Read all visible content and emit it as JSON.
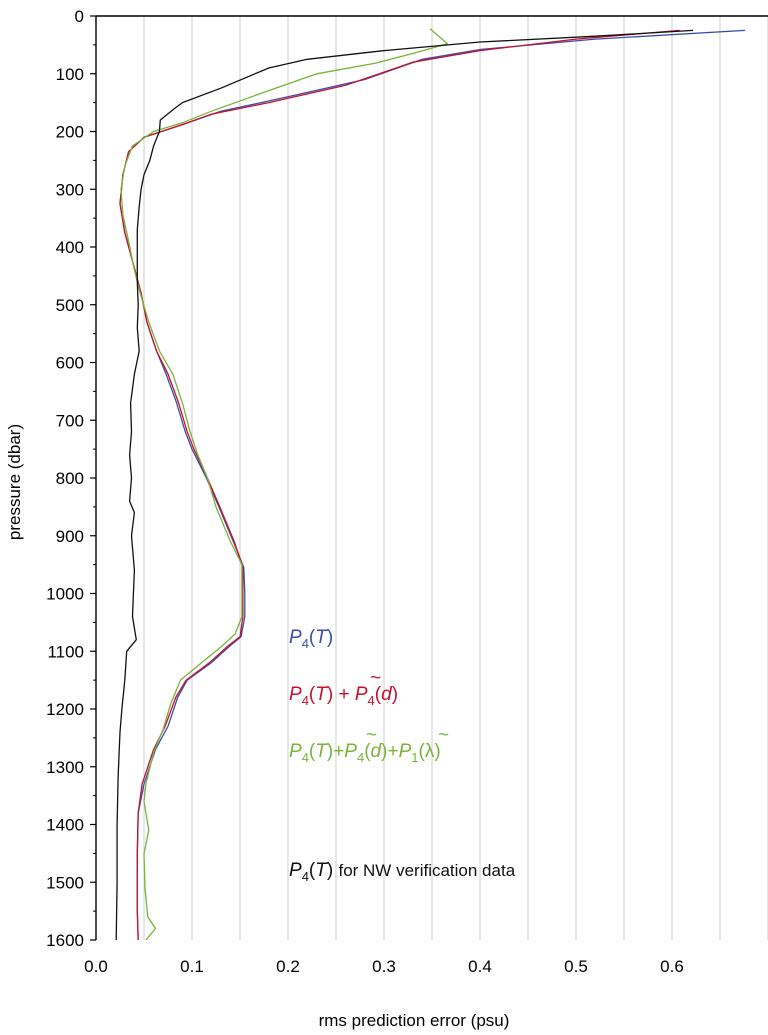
{
  "chart_data": {
    "type": "line",
    "xlabel": "rms prediction error (psu)",
    "ylabel": "pressure (dbar)",
    "xlim": [
      0.0,
      0.7
    ],
    "ylim": [
      1600,
      0
    ],
    "y_inverted": true,
    "grid": "vertical",
    "legend_placement": "center-right",
    "x_ticks": [
      "0.0",
      "0.1",
      "0.2",
      "0.3",
      "0.4",
      "0.5",
      "0.6"
    ],
    "y_ticks": [
      "0",
      "100",
      "200",
      "300",
      "400",
      "500",
      "600",
      "700",
      "800",
      "900",
      "1000",
      "1100",
      "1200",
      "1300",
      "1400",
      "1500",
      "1600"
    ],
    "series": [
      {
        "color": "#3a4ea8",
        "points": [
          [
            0.676,
            25
          ],
          [
            0.52,
            40
          ],
          [
            0.4,
            58
          ],
          [
            0.34,
            75
          ],
          [
            0.28,
            110
          ],
          [
            0.2,
            140
          ],
          [
            0.13,
            165
          ],
          [
            0.09,
            188
          ],
          [
            0.05,
            210
          ],
          [
            0.034,
            235
          ],
          [
            0.028,
            275
          ],
          [
            0.025,
            325
          ],
          [
            0.03,
            375
          ],
          [
            0.039,
            430
          ],
          [
            0.047,
            480
          ],
          [
            0.053,
            530
          ],
          [
            0.063,
            580
          ],
          [
            0.073,
            620
          ],
          [
            0.084,
            670
          ],
          [
            0.093,
            720
          ],
          [
            0.1,
            750
          ],
          [
            0.115,
            800
          ],
          [
            0.128,
            850
          ],
          [
            0.143,
            910
          ],
          [
            0.154,
            955
          ],
          [
            0.155,
            1000
          ],
          [
            0.155,
            1040
          ],
          [
            0.151,
            1075
          ],
          [
            0.14,
            1090
          ],
          [
            0.12,
            1120
          ],
          [
            0.095,
            1150
          ],
          [
            0.085,
            1180
          ],
          [
            0.075,
            1230
          ],
          [
            0.062,
            1270
          ],
          [
            0.05,
            1330
          ],
          [
            0.044,
            1380
          ],
          [
            0.043,
            1450
          ],
          [
            0.043,
            1500
          ],
          [
            0.043,
            1550
          ],
          [
            0.044,
            1600
          ]
        ]
      },
      {
        "color": "#c8102e",
        "points": [
          [
            0.608,
            25
          ],
          [
            0.5,
            40
          ],
          [
            0.4,
            60
          ],
          [
            0.33,
            80
          ],
          [
            0.26,
            120
          ],
          [
            0.18,
            150
          ],
          [
            0.12,
            170
          ],
          [
            0.09,
            188
          ],
          [
            0.05,
            210
          ],
          [
            0.034,
            235
          ],
          [
            0.028,
            275
          ],
          [
            0.025,
            325
          ],
          [
            0.03,
            375
          ],
          [
            0.039,
            430
          ],
          [
            0.047,
            480
          ],
          [
            0.053,
            530
          ],
          [
            0.063,
            580
          ],
          [
            0.075,
            620
          ],
          [
            0.086,
            670
          ],
          [
            0.095,
            720
          ],
          [
            0.102,
            750
          ],
          [
            0.116,
            800
          ],
          [
            0.129,
            850
          ],
          [
            0.144,
            910
          ],
          [
            0.153,
            955
          ],
          [
            0.153,
            1000
          ],
          [
            0.153,
            1040
          ],
          [
            0.15,
            1075
          ],
          [
            0.138,
            1090
          ],
          [
            0.118,
            1120
          ],
          [
            0.094,
            1150
          ],
          [
            0.083,
            1180
          ],
          [
            0.072,
            1230
          ],
          [
            0.06,
            1270
          ],
          [
            0.048,
            1330
          ],
          [
            0.044,
            1380
          ],
          [
            0.043,
            1450
          ],
          [
            0.043,
            1500
          ],
          [
            0.043,
            1550
          ],
          [
            0.044,
            1600
          ]
        ]
      },
      {
        "color": "#7ab33a",
        "points": [
          [
            0.348,
            22
          ],
          [
            0.366,
            48
          ],
          [
            0.33,
            65
          ],
          [
            0.29,
            82
          ],
          [
            0.23,
            100
          ],
          [
            0.17,
            135
          ],
          [
            0.12,
            165
          ],
          [
            0.09,
            185
          ],
          [
            0.06,
            200
          ],
          [
            0.038,
            225
          ],
          [
            0.03,
            260
          ],
          [
            0.026,
            300
          ],
          [
            0.028,
            345
          ],
          [
            0.034,
            390
          ],
          [
            0.04,
            440
          ],
          [
            0.046,
            480
          ],
          [
            0.055,
            530
          ],
          [
            0.066,
            580
          ],
          [
            0.08,
            620
          ],
          [
            0.09,
            670
          ],
          [
            0.098,
            720
          ],
          [
            0.106,
            760
          ],
          [
            0.116,
            800
          ],
          [
            0.125,
            850
          ],
          [
            0.14,
            910
          ],
          [
            0.152,
            950
          ],
          [
            0.152,
            1000
          ],
          [
            0.152,
            1040
          ],
          [
            0.145,
            1070
          ],
          [
            0.132,
            1090
          ],
          [
            0.11,
            1120
          ],
          [
            0.088,
            1150
          ],
          [
            0.078,
            1190
          ],
          [
            0.07,
            1235
          ],
          [
            0.06,
            1275
          ],
          [
            0.052,
            1330
          ],
          [
            0.05,
            1360
          ],
          [
            0.055,
            1410
          ],
          [
            0.05,
            1450
          ],
          [
            0.051,
            1510
          ],
          [
            0.054,
            1560
          ],
          [
            0.062,
            1580
          ],
          [
            0.052,
            1600
          ]
        ]
      },
      {
        "color": "#111111",
        "points": [
          [
            0.622,
            25
          ],
          [
            0.52,
            35
          ],
          [
            0.4,
            45
          ],
          [
            0.3,
            60
          ],
          [
            0.22,
            75
          ],
          [
            0.18,
            90
          ],
          [
            0.13,
            125
          ],
          [
            0.09,
            150
          ],
          [
            0.082,
            160
          ],
          [
            0.067,
            180
          ],
          [
            0.066,
            200
          ],
          [
            0.06,
            225
          ],
          [
            0.056,
            250
          ],
          [
            0.05,
            275
          ],
          [
            0.047,
            300
          ],
          [
            0.045,
            330
          ],
          [
            0.043,
            370
          ],
          [
            0.043,
            420
          ],
          [
            0.043,
            460
          ],
          [
            0.044,
            500
          ],
          [
            0.043,
            540
          ],
          [
            0.045,
            580
          ],
          [
            0.04,
            620
          ],
          [
            0.036,
            670
          ],
          [
            0.037,
            720
          ],
          [
            0.035,
            760
          ],
          [
            0.037,
            800
          ],
          [
            0.035,
            840
          ],
          [
            0.04,
            860
          ],
          [
            0.037,
            900
          ],
          [
            0.04,
            960
          ],
          [
            0.039,
            1000
          ],
          [
            0.038,
            1040
          ],
          [
            0.042,
            1080
          ],
          [
            0.032,
            1100
          ],
          [
            0.03,
            1150
          ],
          [
            0.027,
            1200
          ],
          [
            0.025,
            1240
          ],
          [
            0.024,
            1280
          ],
          [
            0.023,
            1320
          ],
          [
            0.022,
            1400
          ],
          [
            0.022,
            1450
          ],
          [
            0.022,
            1500
          ],
          [
            0.021,
            1600
          ]
        ]
      }
    ],
    "annotations": {
      "blue": {
        "color": "#3a4ea8",
        "base": "P",
        "sub": "4",
        "arg": "T"
      },
      "red": {
        "color": "#c8102e",
        "base1": "P",
        "sub1": "4",
        "arg1": "T",
        "plus": "+",
        "tilde": "~",
        "base2": "P",
        "sub2": "4",
        "arg2": "d"
      },
      "green": {
        "color": "#7ab33a",
        "base1": "P",
        "sub1": "4",
        "arg1": "T",
        "plus": "+",
        "tilde": "~",
        "base2": "P",
        "sub2": "4",
        "arg2": "d",
        "base3": "P",
        "sub3": "1",
        "arg3": "λ"
      },
      "black": {
        "color": "#111111",
        "base": "P",
        "sub": "4",
        "arg": "T",
        "suffix": "for NW verification data"
      }
    }
  }
}
